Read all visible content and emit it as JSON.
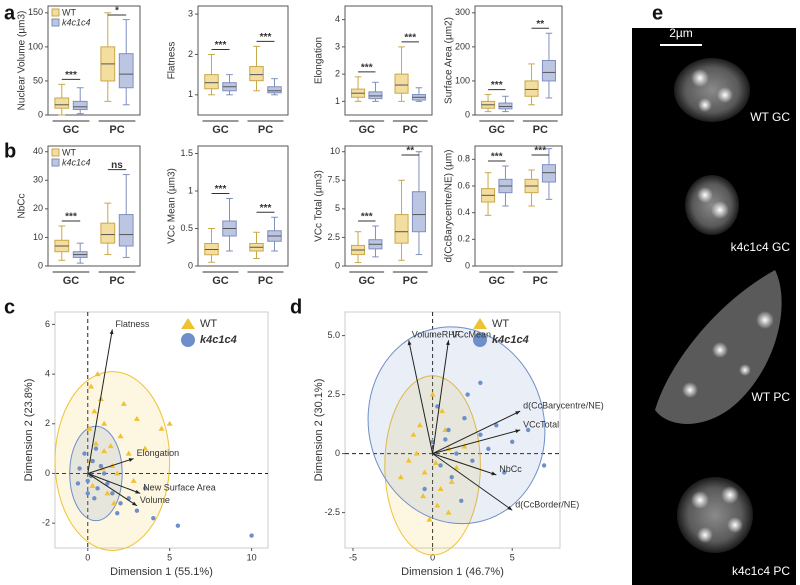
{
  "panel_labels": [
    "a",
    "b",
    "c",
    "d",
    "e"
  ],
  "chart_data": [
    {
      "type": "box",
      "ylabel": "Nuclear Volume (µm3)",
      "groups": [
        "GC",
        "PC"
      ],
      "legend": true,
      "ylim": [
        0,
        160
      ],
      "yticks": [
        0,
        50,
        100,
        150
      ],
      "significance": [
        "***",
        "*"
      ],
      "series": [
        {
          "name": "WT",
          "color": "#f3dea0",
          "boxes": [
            {
              "low": 0,
              "q1": 10,
              "median": 15,
              "q3": 25,
              "high": 45
            },
            {
              "low": 20,
              "q1": 50,
              "median": 75,
              "q3": 100,
              "high": 150
            }
          ]
        },
        {
          "name": "k4c1c4",
          "color": "#bcc6e2",
          "boxes": [
            {
              "low": 2,
              "q1": 8,
              "median": 12,
              "q3": 20,
              "high": 40
            },
            {
              "low": 15,
              "q1": 40,
              "median": 60,
              "q3": 90,
              "high": 140
            }
          ]
        }
      ]
    },
    {
      "type": "box",
      "ylabel": "Flatness",
      "groups": [
        "GC",
        "PC"
      ],
      "legend": false,
      "ylim": [
        0.5,
        3.2
      ],
      "yticks": [
        1,
        2,
        3
      ],
      "significance": [
        "***",
        "***"
      ],
      "series": [
        {
          "name": "WT",
          "color": "#f3dea0",
          "boxes": [
            {
              "low": 1.0,
              "q1": 1.15,
              "median": 1.3,
              "q3": 1.5,
              "high": 2.0
            },
            {
              "low": 1.1,
              "q1": 1.35,
              "median": 1.5,
              "q3": 1.7,
              "high": 2.2
            }
          ]
        },
        {
          "name": "k4c1c4",
          "color": "#bcc6e2",
          "boxes": [
            {
              "low": 1.0,
              "q1": 1.1,
              "median": 1.2,
              "q3": 1.3,
              "high": 1.5
            },
            {
              "low": 1.0,
              "q1": 1.05,
              "median": 1.1,
              "q3": 1.2,
              "high": 1.4
            }
          ]
        }
      ]
    },
    {
      "type": "box",
      "ylabel": "Elongation",
      "groups": [
        "GC",
        "PC"
      ],
      "legend": false,
      "ylim": [
        0.5,
        4.5
      ],
      "yticks": [
        1,
        2,
        3,
        4
      ],
      "significance": [
        "***",
        "***"
      ],
      "series": [
        {
          "name": "WT",
          "color": "#f3dea0",
          "boxes": [
            {
              "low": 1.0,
              "q1": 1.15,
              "median": 1.3,
              "q3": 1.45,
              "high": 1.9
            },
            {
              "low": 1.0,
              "q1": 1.3,
              "median": 1.6,
              "q3": 2.0,
              "high": 3.0
            }
          ]
        },
        {
          "name": "k4c1c4",
          "color": "#bcc6e2",
          "boxes": [
            {
              "low": 1.0,
              "q1": 1.1,
              "median": 1.2,
              "q3": 1.35,
              "high": 1.7
            },
            {
              "low": 1.0,
              "q1": 1.05,
              "median": 1.15,
              "q3": 1.25,
              "high": 1.5
            }
          ]
        }
      ]
    },
    {
      "type": "box",
      "ylabel": "Surface Area (µm2)",
      "groups": [
        "GC",
        "PC"
      ],
      "legend": false,
      "ylim": [
        0,
        320
      ],
      "yticks": [
        0,
        100,
        200,
        300
      ],
      "significance": [
        "***",
        "**"
      ],
      "series": [
        {
          "name": "WT",
          "color": "#f3dea0",
          "boxes": [
            {
              "low": 10,
              "q1": 20,
              "median": 30,
              "q3": 40,
              "high": 60
            },
            {
              "low": 30,
              "q1": 55,
              "median": 75,
              "q3": 100,
              "high": 150
            }
          ]
        },
        {
          "name": "k4c1c4",
          "color": "#bcc6e2",
          "boxes": [
            {
              "low": 10,
              "q1": 18,
              "median": 25,
              "q3": 35,
              "high": 55
            },
            {
              "low": 50,
              "q1": 100,
              "median": 125,
              "q3": 160,
              "high": 240
            }
          ]
        }
      ]
    },
    {
      "type": "box",
      "ylabel": "NbCc",
      "groups": [
        "GC",
        "PC"
      ],
      "legend": true,
      "ylim": [
        0,
        42
      ],
      "yticks": [
        0,
        10,
        20,
        30,
        40
      ],
      "significance": [
        "***",
        "ns"
      ],
      "series": [
        {
          "name": "WT",
          "color": "#f3dea0",
          "boxes": [
            {
              "low": 2,
              "q1": 5,
              "median": 7,
              "q3": 9,
              "high": 14
            },
            {
              "low": 4,
              "q1": 8,
              "median": 11,
              "q3": 15,
              "high": 22
            }
          ]
        },
        {
          "name": "k4c1c4",
          "color": "#bcc6e2",
          "boxes": [
            {
              "low": 1,
              "q1": 3,
              "median": 4,
              "q3": 5,
              "high": 8
            },
            {
              "low": 3,
              "q1": 7,
              "median": 11,
              "q3": 18,
              "high": 32
            }
          ]
        }
      ]
    },
    {
      "type": "box",
      "ylabel": "VCc Mean (µm3)",
      "groups": [
        "GC",
        "PC"
      ],
      "legend": false,
      "ylim": [
        0,
        1.6
      ],
      "yticks": [
        0,
        0.5,
        1,
        1.5
      ],
      "significance": [
        "***",
        "***"
      ],
      "series": [
        {
          "name": "WT",
          "color": "#f3dea0",
          "boxes": [
            {
              "low": 0.05,
              "q1": 0.15,
              "median": 0.22,
              "q3": 0.3,
              "high": 0.5
            },
            {
              "low": 0.1,
              "q1": 0.2,
              "median": 0.25,
              "q3": 0.3,
              "high": 0.45
            }
          ]
        },
        {
          "name": "k4c1c4",
          "color": "#bcc6e2",
          "boxes": [
            {
              "low": 0.2,
              "q1": 0.4,
              "median": 0.5,
              "q3": 0.6,
              "high": 0.9
            },
            {
              "low": 0.2,
              "q1": 0.33,
              "median": 0.4,
              "q3": 0.47,
              "high": 0.65
            }
          ]
        }
      ]
    },
    {
      "type": "box",
      "ylabel": "VCc Total (µm3)",
      "groups": [
        "GC",
        "PC"
      ],
      "legend": false,
      "ylim": [
        0,
        10.5
      ],
      "yticks": [
        0,
        2.5,
        5,
        7.5,
        10
      ],
      "significance": [
        "***",
        "**"
      ],
      "series": [
        {
          "name": "WT",
          "color": "#f3dea0",
          "boxes": [
            {
              "low": 0.3,
              "q1": 1,
              "median": 1.4,
              "q3": 1.8,
              "high": 3
            },
            {
              "low": 0.5,
              "q1": 2,
              "median": 3,
              "q3": 4.5,
              "high": 7.5
            }
          ]
        },
        {
          "name": "k4c1c4",
          "color": "#bcc6e2",
          "boxes": [
            {
              "low": 0.8,
              "q1": 1.5,
              "median": 1.9,
              "q3": 2.3,
              "high": 3.5
            },
            {
              "low": 1,
              "q1": 3,
              "median": 4.5,
              "q3": 6.5,
              "high": 10
            }
          ]
        }
      ]
    },
    {
      "type": "box",
      "ylabel": "d(CcBarycentre/NE) (µm)",
      "groups": [
        "GC",
        "PC"
      ],
      "legend": false,
      "ylim": [
        0,
        0.9
      ],
      "yticks": [
        0,
        0.2,
        0.4,
        0.6,
        0.8
      ],
      "significance": [
        "***",
        "***"
      ],
      "series": [
        {
          "name": "WT",
          "color": "#f3dea0",
          "boxes": [
            {
              "low": 0.38,
              "q1": 0.48,
              "median": 0.53,
              "q3": 0.58,
              "high": 0.7
            },
            {
              "low": 0.45,
              "q1": 0.55,
              "median": 0.6,
              "q3": 0.65,
              "high": 0.72
            }
          ]
        },
        {
          "name": "k4c1c4",
          "color": "#bcc6e2",
          "boxes": [
            {
              "low": 0.45,
              "q1": 0.55,
              "median": 0.6,
              "q3": 0.65,
              "high": 0.75
            },
            {
              "low": 0.5,
              "q1": 0.63,
              "median": 0.7,
              "q3": 0.76,
              "high": 0.88
            }
          ]
        }
      ]
    },
    {
      "type": "biplot",
      "xlabel": "Dimension 1 (55.1%)",
      "ylabel": "Dimension 2 (23.8%)",
      "xlim": [
        -2,
        11
      ],
      "ylim": [
        -3,
        6.5
      ],
      "xticks": [
        0,
        5,
        10
      ],
      "yticks": [
        -2,
        0,
        2,
        4,
        6
      ],
      "series": [
        {
          "name": "WT",
          "color": "#f0c232",
          "marker": "triangle",
          "ellipse": {
            "cx": 1.5,
            "cy": 0.5,
            "rx": 3.5,
            "ry": 3.6,
            "angle": 0
          },
          "x": [
            0.2,
            0.5,
            1.0,
            1.5,
            0.8,
            2.0,
            2.5,
            3.0,
            0.3,
            1.2,
            1.8,
            0.6,
            2.2,
            3.5,
            4.5,
            0.1,
            1.0,
            0.4,
            2.8,
            1.6,
            0.9,
            5.0,
            0.2,
            1.4
          ],
          "y": [
            0.5,
            1.2,
            2.0,
            0.3,
            3.0,
            1.5,
            0.8,
            2.2,
            -0.5,
            -0.8,
            0.0,
            4.0,
            2.8,
            1.0,
            1.8,
            1.8,
            0.9,
            2.5,
            -0.3,
            -1.2,
            0.2,
            2.0,
            3.5,
            1.1
          ]
        },
        {
          "name": "k4c1c4",
          "color": "#6e8fc9",
          "marker": "circle",
          "ellipse": {
            "cx": 0.5,
            "cy": 0,
            "rx": 1.6,
            "ry": 1.9,
            "angle": 0
          },
          "x": [
            -0.5,
            0.0,
            0.3,
            0.6,
            1.0,
            -0.2,
            0.4,
            1.5,
            2.0,
            3.0,
            4.0,
            0.8,
            -0.6,
            0.2,
            1.2,
            2.5,
            5.5,
            10.0,
            3.5,
            0.5,
            0.0,
            1.8
          ],
          "y": [
            0.2,
            -0.3,
            0.5,
            -0.6,
            0.0,
            0.8,
            -1.0,
            -0.8,
            -1.2,
            -1.5,
            -1.8,
            0.3,
            -0.4,
            -0.1,
            -0.4,
            -1.0,
            -2.1,
            -2.5,
            -0.6,
            1.0,
            -0.8,
            -1.6
          ]
        }
      ],
      "loadings": [
        {
          "label": "Flatness",
          "x": 1.5,
          "y": 5.8
        },
        {
          "label": "Elongation",
          "x": 2.8,
          "y": 0.6
        },
        {
          "label": "New Surface Area",
          "x": 3.2,
          "y": -0.8
        },
        {
          "label": "Volume",
          "x": 3.0,
          "y": -1.3
        }
      ]
    },
    {
      "type": "biplot",
      "xlabel": "Dimension 1 (46.7%)",
      "ylabel": "Dimension 2 (30.1%)",
      "xlim": [
        -5.5,
        8
      ],
      "ylim": [
        -4,
        6
      ],
      "xticks": [
        -5,
        0,
        5
      ],
      "yticks": [
        {
          "value": -2.5,
          "label": "-2.5"
        },
        0,
        2.5,
        {
          "value": 5,
          "label": "5.0"
        }
      ],
      "series": [
        {
          "name": "WT",
          "color": "#f0c232",
          "marker": "triangle",
          "ellipse": {
            "cx": 0,
            "cy": -0.5,
            "rx": 3,
            "ry": 3.8,
            "angle": 0
          },
          "x": [
            -1,
            -0.5,
            0,
            0.5,
            1,
            -1.5,
            -0.8,
            0.3,
            1.5,
            -0.2,
            0.8,
            -1.2,
            0.2,
            1.2,
            -0.6,
            0.6,
            2,
            -2,
            0,
            1
          ],
          "y": [
            0,
            -0.8,
            0.5,
            -1.5,
            0.2,
            -0.3,
            1.2,
            -2.2,
            -0.6,
            -2.8,
            1,
            0.8,
            -0.4,
            -1.2,
            -1.8,
            1.8,
            0.3,
            -1,
            2.5,
            -2.5
          ]
        },
        {
          "name": "k4c1c4",
          "color": "#6e8fc9",
          "marker": "circle",
          "ellipse": {
            "cx": 1.5,
            "cy": 1.2,
            "rx": 5.5,
            "ry": 4.2,
            "angle": 15
          },
          "x": [
            0,
            0.5,
            1,
            1.5,
            2,
            2.5,
            3,
            3.5,
            4,
            5,
            1.2,
            0.3,
            2.2,
            4.5,
            6,
            -0.5,
            1.8,
            3,
            7,
            0.8
          ],
          "y": [
            0.5,
            -0.5,
            1,
            0,
            1.5,
            -0.3,
            0.8,
            0.2,
            1.2,
            0.5,
            -1,
            2,
            2.5,
            -0.8,
            1,
            -1.5,
            -2,
            3,
            -0.5,
            0.6
          ]
        }
      ],
      "loadings": [
        {
          "label": "VolumeRHF",
          "x": -1.5,
          "y": 4.8
        },
        {
          "label": "VCcMean",
          "x": 1,
          "y": 4.8
        },
        {
          "label": "d(CcBarycentre/NE)",
          "x": 5.5,
          "y": 1.8
        },
        {
          "label": "VCcTotal",
          "x": 5.5,
          "y": 1.0
        },
        {
          "label": "NbCc",
          "x": 4,
          "y": -0.9
        },
        {
          "label": "d(CcBorder/NE)",
          "x": 5,
          "y": -2.4
        }
      ]
    }
  ],
  "image_panel": {
    "scale_bar": "2µm",
    "labels": [
      "WT GC",
      "k4c1c4 GC",
      "WT PC",
      "k4c1c4 PC"
    ]
  }
}
